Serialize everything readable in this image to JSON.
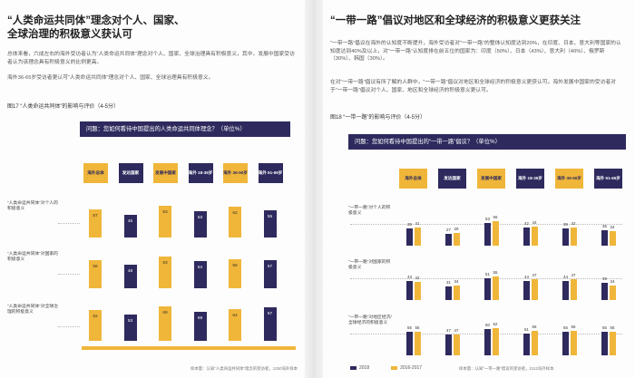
{
  "left": {
    "title_line1": "“人类命运共同体”理念对个人、国家、",
    "title_line2": "全球治理的积极意义获认可",
    "para1": "总体来看，六成左右的海外受访者认为“人类命运共同体”理念对个人、国家、全球治理具有积极意义，其中，发展中国家受访者认为该理念具有积极意义的比例更高。",
    "para2": "海外36-65岁受访者更认可“人类命运共同体”理念对个人、国家、全球治理具有积极意义。",
    "figure_title": "图17 “人类命运共同体”的影响与评价（4-5分）",
    "question": "问题：您如何看待中国提出的人类命运共同体理念？（单位%）",
    "headers": [
      "海外总体",
      "发达国家",
      "发展中国家",
      "海外 18-35岁",
      "海外 36-50岁",
      "海外 51-65岁"
    ],
    "rows": [
      {
        "label": "“人类命运共同体”对个人的积极意义",
        "values": [
          57,
          45,
          63,
          53,
          62,
          55
        ]
      },
      {
        "label": "“人类命运共同体”对国家的积极意义",
        "values": [
          56,
          48,
          63,
          54,
          58,
          57
        ]
      },
      {
        "label": "“人类命运共同体”对全球治理的积极意义",
        "values": [
          62,
          53,
          69,
          59,
          64,
          67
        ]
      }
    ],
    "source": "样本量：认知“人类命运共同体”理念的受访者，1250海外样本"
  },
  "right": {
    "title": "“一带一路”倡议对地区和全球经济的积极意义更获关注",
    "para1": "“一带一路”倡议在海外的认知度不断提升，海外受访者对“一带一路”的整体认知度达到20%，在印度、日本、意大利等国家的认知度达到40%及以上，对“一带一路”认知度排在前五位的国家为：印度（50%）、日本（43%）、意大利（40%）、俄罗斯（30%）、韩国（30%）。",
    "para2": "在对“一带一路”倡议有所了解的人群中，“一带一路”倡议对地区和全球经济的积极意义更获认可。海外发展中国家的受访者对于“一带一路”倡议对个人、国家、地区和全球经济的积极意义更认可。",
    "figure_title": "图18 “一带一路”的影响与评价（4-5分）",
    "question": "问题：您如何看待中国提出的“一带一路”倡议？（单位%）",
    "headers": [
      "海外总体",
      "发达国家",
      "发展中国家",
      "海外 18-35岁",
      "海外 36-50岁",
      "海外 51-65岁"
    ],
    "rows": [
      {
        "label": "“一带一路”对个人的积极意义",
        "v2018": [
          39,
          27,
          53,
          42,
          39,
          36
        ],
        "v2016": [
          41,
          29,
          56,
          44,
          42,
          34
        ]
      },
      {
        "label": "“一带一路”对国家的积极意义",
        "v2018": [
          43,
          31,
          51,
          44,
          44,
          39
        ],
        "v2016": [
          42,
          34,
          55,
          47,
          47,
          34
        ]
      },
      {
        "label": "“一带一路”对地区经济/全球经济的积极意义",
        "v2018": [
          55,
          47,
          60,
          51,
          55,
          55
        ],
        "v2016": [
          55,
          47,
          62,
          56,
          56,
          55
        ]
      }
    ],
    "legend_2018": "2018",
    "legend_2016": "2016-2017",
    "source": "样本量：认知“一带一路”倡议的受访者，2112海外样本"
  },
  "colors": {
    "gold": "#f0b63a",
    "navy": "#2e2a5e"
  }
}
